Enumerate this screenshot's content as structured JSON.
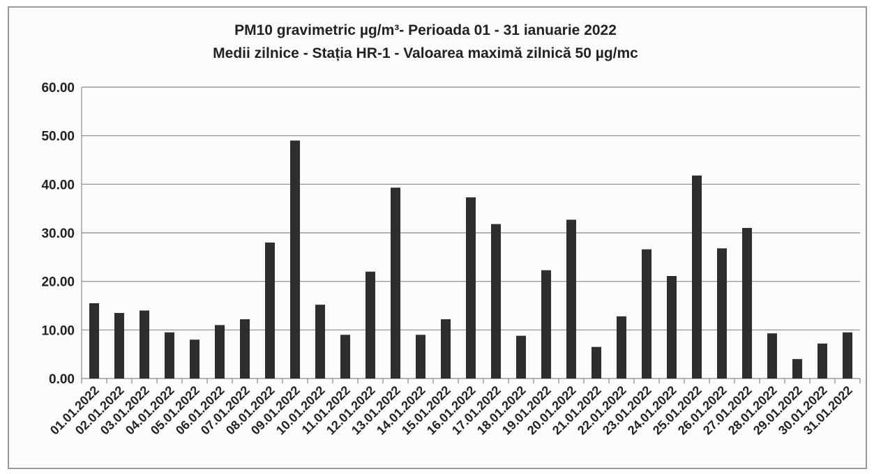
{
  "chart_data": {
    "type": "bar",
    "title": "PM10 gravimetric µg/m³- Perioada 01 - 31 ianuarie  2022",
    "subtitle": "Medii zilnice - Stația HR-1 -  Valoarea maximă zilnică 50 µg/mc",
    "categories": [
      "01.01.2022",
      "02.01.2022",
      "03.01.2022",
      "04.01.2022",
      "05.01.2022",
      "06.01.2022",
      "07.01.2022",
      "08.01.2022",
      "09.01.2022",
      "10.01.2022",
      "11.01.2022",
      "12.01.2022",
      "13.01.2022",
      "14.01.2022",
      "15.01.2022",
      "16.01.2022",
      "17.01.2022",
      "18.01.2022",
      "19.01.2022",
      "20.01.2022",
      "21.01.2022",
      "22.01.2022",
      "23.01.2022",
      "24.01.2022",
      "25.01.2022",
      "26.01.2022",
      "27.01.2022",
      "28.01.2022",
      "29.01.2022",
      "30.01.2022",
      "31.01.2022"
    ],
    "values": [
      15.5,
      13.5,
      14,
      9.5,
      8,
      11,
      12.2,
      28,
      49,
      15.2,
      9,
      22,
      39.3,
      9,
      12.2,
      37.3,
      31.8,
      8.8,
      22.3,
      32.7,
      6.5,
      12.8,
      26.6,
      21.1,
      41.8,
      26.8,
      31,
      9.3,
      4,
      7.2,
      9.5
    ],
    "color": "#2e2e2e",
    "ylim": [
      0,
      60
    ],
    "yticks": [
      {
        "value": 0,
        "label": "0.00"
      },
      {
        "value": 10,
        "label": "10.00"
      },
      {
        "value": 20,
        "label": "20.00"
      },
      {
        "value": 30,
        "label": "30.00"
      },
      {
        "value": 40,
        "label": "40.00"
      },
      {
        "value": 50,
        "label": "50.00"
      },
      {
        "value": 60,
        "label": "60.00"
      }
    ],
    "grid": true
  }
}
